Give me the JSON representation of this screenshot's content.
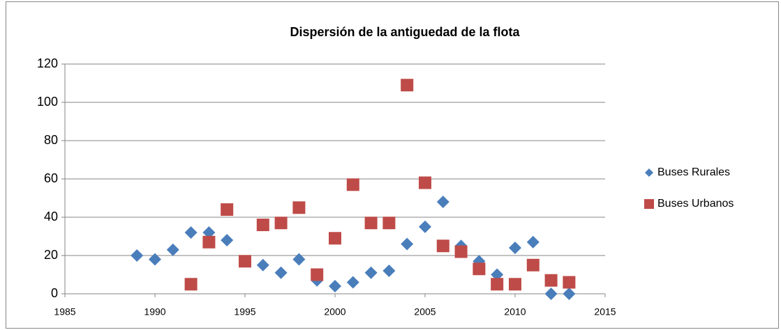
{
  "chart_data": {
    "type": "scatter",
    "title": "Dispersión de la antiguedad de la flota",
    "xlim": [
      1985,
      2015
    ],
    "xticks": [
      1985,
      1990,
      1995,
      2000,
      2005,
      2010,
      2015
    ],
    "ylim": [
      0,
      120
    ],
    "yticks": [
      0,
      20,
      40,
      60,
      80,
      100,
      120
    ],
    "grid": true,
    "legend": "right",
    "series": [
      {
        "name": "Buses Rurales",
        "color": "#4a7ebb",
        "marker": "diamond",
        "x": [
          1989,
          1990,
          1991,
          1992,
          1993,
          1994,
          1996,
          1997,
          1998,
          1999,
          2000,
          2001,
          2002,
          2003,
          2004,
          2005,
          2006,
          2007,
          2008,
          2009,
          2010,
          2011,
          2012,
          2013
        ],
        "values": [
          20,
          18,
          23,
          32,
          32,
          28,
          15,
          11,
          18,
          7,
          4,
          6,
          11,
          12,
          26,
          35,
          48,
          25,
          17,
          10,
          24,
          27,
          0,
          0
        ]
      },
      {
        "name": "Buses Urbanos",
        "color": "#be4b48",
        "marker": "square",
        "x": [
          1992,
          1993,
          1994,
          1995,
          1996,
          1997,
          1998,
          1999,
          2000,
          2001,
          2002,
          2003,
          2004,
          2005,
          2006,
          2007,
          2008,
          2009,
          2010,
          2011,
          2012,
          2013
        ],
        "values": [
          5,
          27,
          44,
          17,
          36,
          37,
          45,
          10,
          29,
          57,
          37,
          37,
          109,
          58,
          25,
          22,
          13,
          5,
          5,
          15,
          7,
          6
        ]
      }
    ]
  }
}
